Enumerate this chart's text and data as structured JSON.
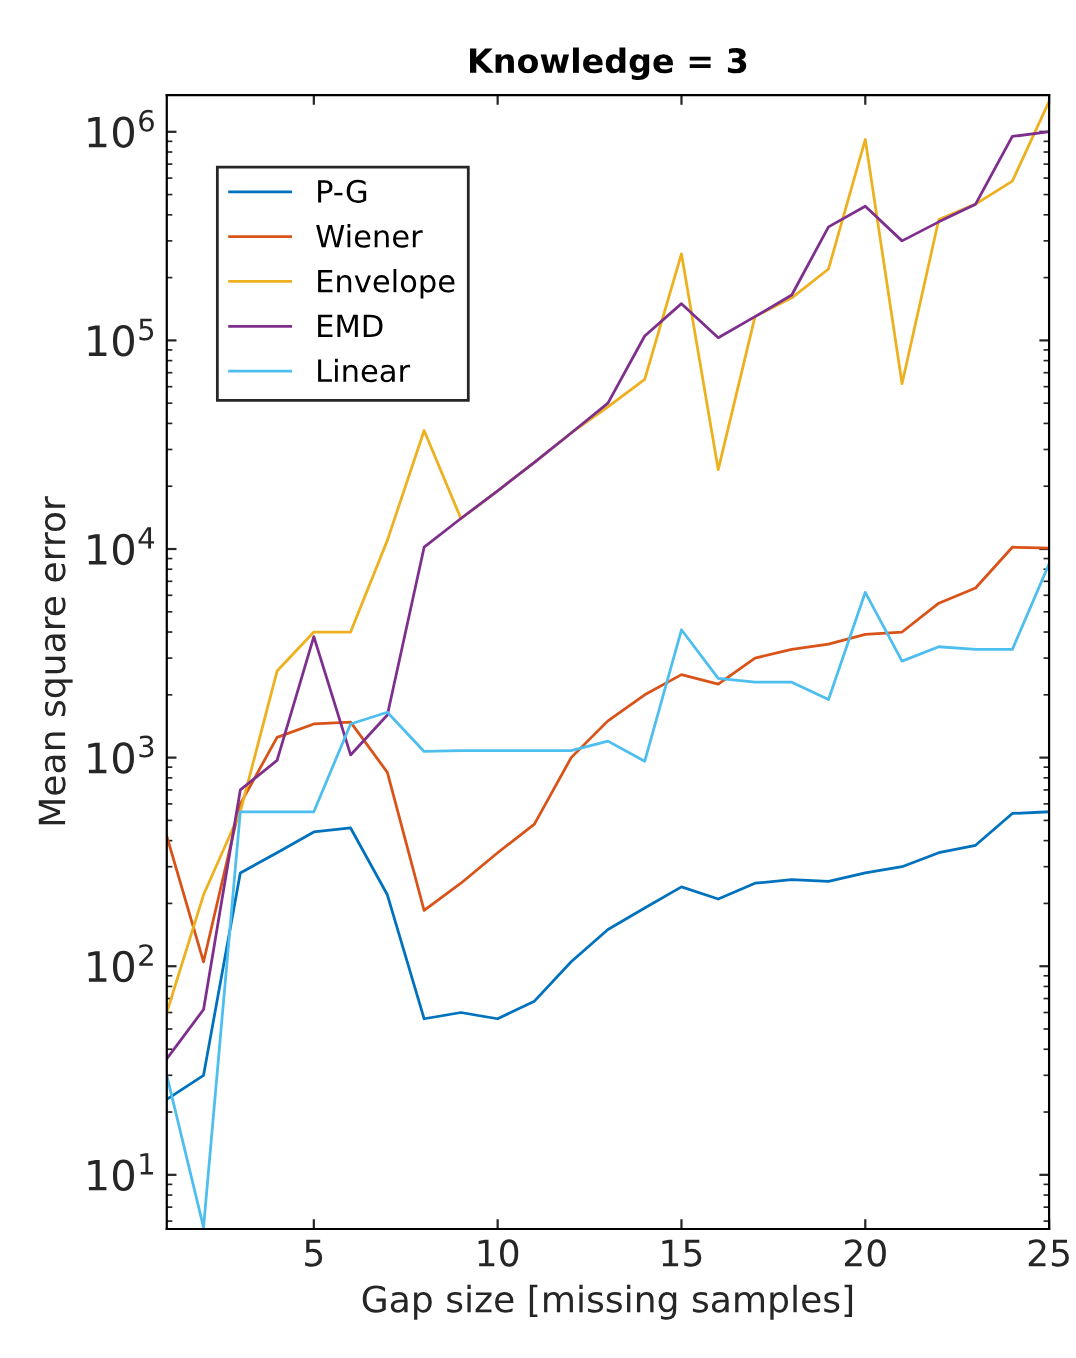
{
  "chart_data": {
    "type": "line",
    "title": "Knowledge = 3",
    "xlabel": "Gap size [missing samples]",
    "ylabel": "Mean square error",
    "x": [
      1,
      2,
      3,
      4,
      5,
      6,
      7,
      8,
      9,
      10,
      11,
      12,
      13,
      14,
      15,
      16,
      17,
      18,
      19,
      20,
      21,
      22,
      23,
      24,
      25
    ],
    "series": [
      {
        "name": "P-G",
        "color": "#0072bd",
        "values": [
          23,
          30,
          280,
          350,
          440,
          460,
          220,
          56,
          60,
          56,
          68,
          105,
          150,
          190,
          240,
          210,
          250,
          260,
          255,
          280,
          300,
          350,
          380,
          540,
          550
        ]
      },
      {
        "name": "Wiener",
        "color": "#d95319",
        "values": [
          420,
          105,
          600,
          1250,
          1450,
          1480,
          850,
          185,
          250,
          350,
          480,
          1000,
          1500,
          2000,
          2500,
          2250,
          3000,
          3300,
          3500,
          3900,
          4000,
          5500,
          6500,
          10200,
          10100
        ]
      },
      {
        "name": "Envelope",
        "color": "#edb120",
        "values": [
          60,
          220,
          550,
          2600,
          4000,
          4000,
          11000,
          37000,
          14000,
          19000,
          26000,
          36000,
          48000,
          65000,
          260000,
          24000,
          130000,
          160000,
          220000,
          920000,
          62000,
          380000,
          450000,
          580000,
          1400000
        ]
      },
      {
        "name": "EMD",
        "color": "#7e2f8e",
        "values": [
          36,
          62,
          700,
          970,
          3800,
          1030,
          1600,
          10200,
          14000,
          19000,
          26000,
          36000,
          50000,
          105000,
          150000,
          103000,
          130000,
          165000,
          350000,
          440000,
          300000,
          370000,
          450000,
          950000,
          1000000
        ]
      },
      {
        "name": "Linear",
        "color": "#4dbeee",
        "values": [
          30,
          5.6,
          550,
          550,
          550,
          1450,
          1650,
          1070,
          1080,
          1080,
          1080,
          1080,
          1200,
          960,
          4100,
          2400,
          2300,
          2300,
          1900,
          6200,
          2900,
          3400,
          3300,
          3300,
          8500
        ]
      }
    ],
    "log": "y",
    "xlim": [
      1,
      25
    ],
    "xticks": [
      5,
      10,
      15,
      20,
      25
    ],
    "ylim": [
      5.5,
      1500000
    ],
    "yticks": [
      {
        "value": 10,
        "label": "10$^{1}$"
      },
      {
        "value": 100,
        "label": "10$^{2}$"
      },
      {
        "value": 1000,
        "label": "10$^{3}$"
      },
      {
        "value": 10000,
        "label": "10$^{4}$"
      },
      {
        "value": 100000,
        "label": "10$^{5}$"
      },
      {
        "value": 1000000,
        "label": "10$^{6}$"
      }
    ],
    "legend": "top left",
    "grid": false,
    "marker": "none",
    "line_style": "solid"
  }
}
